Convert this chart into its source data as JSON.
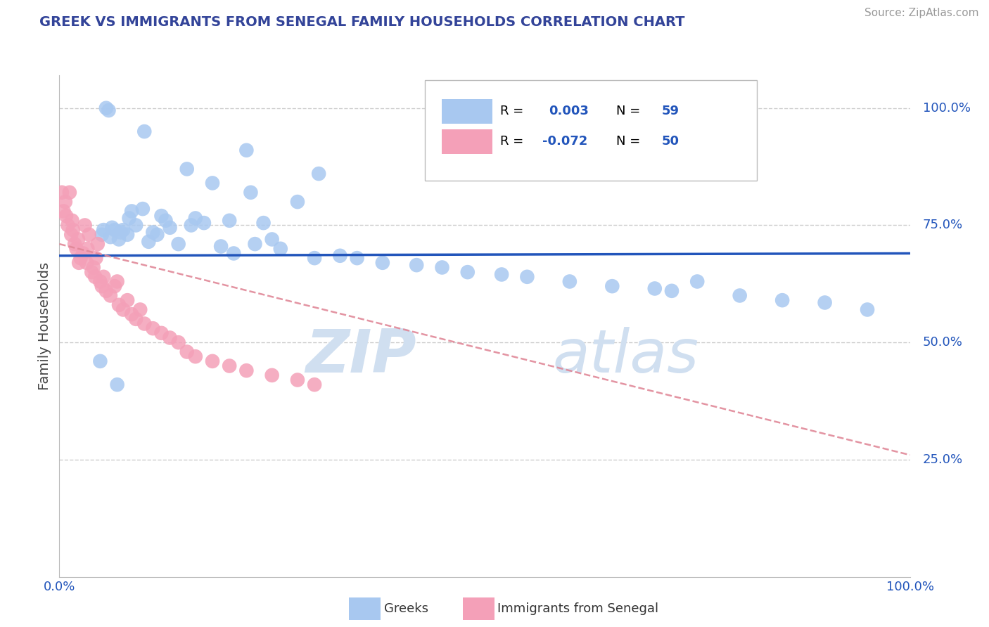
{
  "title": "GREEK VS IMMIGRANTS FROM SENEGAL FAMILY HOUSEHOLDS CORRELATION CHART",
  "source": "Source: ZipAtlas.com",
  "ylabel": "Family Households",
  "xlim": [
    0,
    100
  ],
  "ylim": [
    0,
    107
  ],
  "yticks": [
    0,
    25,
    50,
    75,
    100
  ],
  "ytick_labels": [
    "",
    "25.0%",
    "50.0%",
    "75.0%",
    "100.0%"
  ],
  "xtick_vals": [
    0,
    25,
    50,
    75,
    100
  ],
  "xtick_labels": [
    "0.0%",
    "",
    "",
    "",
    "100.0%"
  ],
  "legend_blue_r": "R =  0.003",
  "legend_blue_n": "N = 59",
  "legend_pink_r": "R = -0.072",
  "legend_pink_n": "N = 50",
  "blue_color": "#a8c8f0",
  "pink_color": "#f4a0b8",
  "trend_blue_color": "#2255bb",
  "trend_pink_color": "#e08898",
  "watermark_color": "#d0dff0",
  "title_color": "#334499",
  "legend_r_color": "#000000",
  "legend_n_color": "#2255bb",
  "axis_tick_color": "#2255bb",
  "blue_scatter_x": [
    5.5,
    5.8,
    10.0,
    22.0,
    30.5,
    15.0,
    18.0,
    22.5,
    28.0,
    8.5,
    12.0,
    16.0,
    20.0,
    24.0,
    9.0,
    13.0,
    6.5,
    7.5,
    11.0,
    8.0,
    6.0,
    7.0,
    10.5,
    14.0,
    19.0,
    26.0,
    33.0,
    30.0,
    38.0,
    42.0,
    35.0,
    48.0,
    55.0,
    60.0,
    45.0,
    65.0,
    70.0,
    80.0,
    72.0,
    90.0,
    85.0,
    95.0,
    75.0,
    52.0,
    25.0,
    17.0,
    5.2,
    6.2,
    8.2,
    9.8,
    12.5,
    15.5,
    7.2,
    11.5,
    4.8,
    6.8,
    20.5,
    23.0,
    5.0
  ],
  "blue_scatter_y": [
    100.0,
    99.5,
    95.0,
    91.0,
    86.0,
    87.0,
    84.0,
    82.0,
    80.0,
    78.0,
    77.0,
    76.5,
    76.0,
    75.5,
    75.0,
    74.5,
    74.0,
    74.0,
    73.5,
    73.0,
    72.5,
    72.0,
    71.5,
    71.0,
    70.5,
    70.0,
    68.5,
    68.0,
    67.0,
    66.5,
    68.0,
    65.0,
    64.0,
    63.0,
    66.0,
    62.0,
    61.5,
    60.0,
    61.0,
    58.5,
    59.0,
    57.0,
    63.0,
    64.5,
    72.0,
    75.5,
    74.0,
    74.5,
    76.5,
    78.5,
    76.0,
    75.0,
    73.5,
    73.0,
    46.0,
    41.0,
    69.0,
    71.0,
    73.0
  ],
  "pink_scatter_x": [
    0.3,
    0.5,
    0.7,
    0.8,
    1.0,
    1.2,
    1.4,
    1.6,
    1.8,
    2.0,
    2.2,
    2.5,
    2.8,
    3.0,
    3.2,
    3.5,
    3.8,
    4.0,
    4.2,
    4.5,
    4.8,
    5.0,
    5.2,
    5.5,
    6.0,
    6.5,
    7.0,
    7.5,
    8.0,
    8.5,
    9.0,
    9.5,
    10.0,
    11.0,
    12.0,
    13.0,
    14.0,
    15.0,
    16.0,
    18.0,
    20.0,
    22.0,
    25.0,
    28.0,
    30.0,
    1.5,
    2.3,
    3.3,
    4.3,
    6.8
  ],
  "pink_scatter_y": [
    82.0,
    78.0,
    80.0,
    77.0,
    75.0,
    82.0,
    73.0,
    74.0,
    71.0,
    70.0,
    72.0,
    68.0,
    69.0,
    75.0,
    67.0,
    73.0,
    65.0,
    66.0,
    64.0,
    71.0,
    63.0,
    62.0,
    64.0,
    61.0,
    60.0,
    62.0,
    58.0,
    57.0,
    59.0,
    56.0,
    55.0,
    57.0,
    54.0,
    53.0,
    52.0,
    51.0,
    50.0,
    48.0,
    47.0,
    46.0,
    45.0,
    44.0,
    43.0,
    42.0,
    41.0,
    76.0,
    67.0,
    70.0,
    68.0,
    63.0
  ],
  "blue_trend_x": [
    0,
    100
  ],
  "blue_trend_y": [
    68.5,
    69.0
  ],
  "pink_trend_x": [
    0,
    100
  ],
  "pink_trend_y": [
    71.0,
    26.0
  ],
  "background_color": "#ffffff",
  "grid_color": "#cccccc"
}
